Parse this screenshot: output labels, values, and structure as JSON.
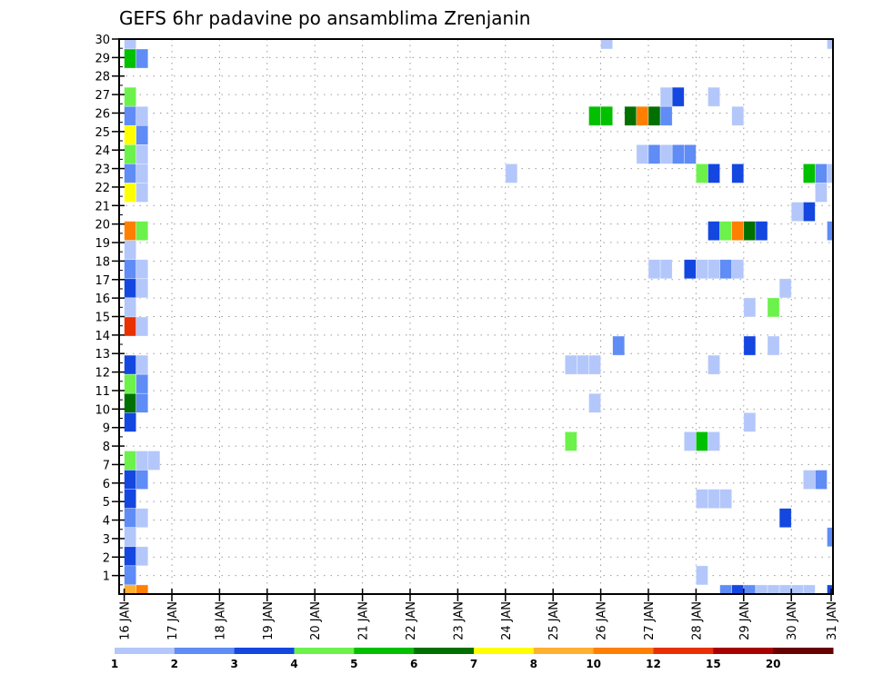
{
  "chart_data": {
    "type": "heatmap",
    "title": "GEFS 6hr padavine po ansamblima Zrenjanin",
    "xlabel": "",
    "ylabel": "",
    "x_tick_labels": [
      "16 JAN",
      "17 JAN",
      "18 JAN",
      "19 JAN",
      "20 JAN",
      "21 JAN",
      "22 JAN",
      "23 JAN",
      "24 JAN",
      "25 JAN",
      "26 JAN",
      "27 JAN",
      "28 JAN",
      "29 JAN",
      "30 JAN",
      "31 JAN"
    ],
    "x_unit": "6-hour step index from 16 JAN",
    "steps_per_day": 4,
    "y_tick_labels": [
      "1",
      "2",
      "3",
      "4",
      "5",
      "6",
      "7",
      "8",
      "9",
      "10",
      "11",
      "12",
      "13",
      "14",
      "15",
      "16",
      "17",
      "18",
      "19",
      "20",
      "21",
      "22",
      "23",
      "24",
      "25",
      "26",
      "27",
      "28",
      "29",
      "30"
    ],
    "ylim": [
      0,
      30
    ],
    "grid": true,
    "colorbar": {
      "placement": "bottom",
      "levels": [
        "1",
        "2",
        "3",
        "4",
        "5",
        "6",
        "7",
        "8",
        "10",
        "12",
        "15",
        "20"
      ],
      "bounds": [
        1,
        2,
        3,
        4,
        5,
        6,
        7,
        8,
        10,
        12,
        15,
        20,
        30
      ],
      "colors": [
        "#b4c7fb",
        "#5f8cf5",
        "#1446e0",
        "#6cf24a",
        "#00c000",
        "#007000",
        "#ffff00",
        "#ffb030",
        "#ff7f00",
        "#e83000",
        "#a80000",
        "#680000"
      ]
    },
    "cells_format": [
      "member",
      "step",
      "value_mm"
    ],
    "cells": [
      [
        30,
        0,
        1.5
      ],
      [
        30,
        40,
        1.5
      ],
      [
        30,
        59,
        1.5
      ],
      [
        29,
        0,
        5.5
      ],
      [
        29,
        1,
        2.5
      ],
      [
        27,
        0,
        4.5
      ],
      [
        27,
        45,
        1.5
      ],
      [
        27,
        46,
        3.5
      ],
      [
        27,
        49,
        1.5
      ],
      [
        26,
        0,
        2.5
      ],
      [
        26,
        1,
        1.5
      ],
      [
        26,
        39,
        5.5
      ],
      [
        26,
        40,
        5.5
      ],
      [
        26,
        42,
        6.5
      ],
      [
        26,
        43,
        11
      ],
      [
        26,
        44,
        6.5
      ],
      [
        26,
        45,
        2.5
      ],
      [
        26,
        51,
        1.5
      ],
      [
        25,
        0,
        7.5
      ],
      [
        25,
        1,
        2.5
      ],
      [
        24,
        0,
        4.5
      ],
      [
        24,
        1,
        1.5
      ],
      [
        24,
        43,
        1.5
      ],
      [
        24,
        44,
        2.5
      ],
      [
        24,
        45,
        1.5
      ],
      [
        24,
        46,
        2.5
      ],
      [
        24,
        47,
        2.5
      ],
      [
        23,
        0,
        2.5
      ],
      [
        23,
        1,
        1.5
      ],
      [
        23,
        32,
        1.5
      ],
      [
        23,
        48,
        4.5
      ],
      [
        23,
        49,
        3.5
      ],
      [
        23,
        51,
        3.5
      ],
      [
        23,
        57,
        5.5
      ],
      [
        23,
        58,
        2.5
      ],
      [
        23,
        59,
        1.5
      ],
      [
        22,
        0,
        7.5
      ],
      [
        22,
        1,
        1.5
      ],
      [
        22,
        58,
        1.5
      ],
      [
        21,
        56,
        1.5
      ],
      [
        21,
        57,
        3.5
      ],
      [
        20,
        0,
        11
      ],
      [
        20,
        1,
        4.5
      ],
      [
        20,
        49,
        3.5
      ],
      [
        20,
        50,
        4.5
      ],
      [
        20,
        51,
        11
      ],
      [
        20,
        52,
        6.5
      ],
      [
        20,
        53,
        3.5
      ],
      [
        20,
        59,
        2.5
      ],
      [
        19,
        0,
        1.5
      ],
      [
        18,
        0,
        2.5
      ],
      [
        18,
        1,
        1.5
      ],
      [
        18,
        44,
        1.5
      ],
      [
        18,
        45,
        1.5
      ],
      [
        18,
        47,
        3.5
      ],
      [
        18,
        48,
        1.5
      ],
      [
        18,
        49,
        1.5
      ],
      [
        18,
        50,
        2.5
      ],
      [
        18,
        51,
        1.5
      ],
      [
        17,
        0,
        3.5
      ],
      [
        17,
        1,
        1.5
      ],
      [
        17,
        55,
        1.5
      ],
      [
        16,
        0,
        1.5
      ],
      [
        16,
        52,
        1.5
      ],
      [
        16,
        54,
        4.5
      ],
      [
        15,
        0,
        13
      ],
      [
        15,
        1,
        1.5
      ],
      [
        14,
        41,
        2.5
      ],
      [
        14,
        52,
        3.5
      ],
      [
        14,
        54,
        1.5
      ],
      [
        13,
        0,
        3.5
      ],
      [
        13,
        1,
        1.5
      ],
      [
        13,
        37,
        1.5
      ],
      [
        13,
        38,
        1.5
      ],
      [
        13,
        39,
        1.5
      ],
      [
        13,
        49,
        1.5
      ],
      [
        12,
        0,
        4.5
      ],
      [
        12,
        1,
        2.5
      ],
      [
        11,
        0,
        6.5
      ],
      [
        11,
        1,
        2.5
      ],
      [
        11,
        39,
        1.5
      ],
      [
        10,
        0,
        3.5
      ],
      [
        10,
        52,
        1.5
      ],
      [
        9,
        37,
        4.5
      ],
      [
        9,
        47,
        1.5
      ],
      [
        9,
        48,
        5.5
      ],
      [
        9,
        49,
        1.5
      ],
      [
        8,
        0,
        4.5
      ],
      [
        8,
        1,
        1.5
      ],
      [
        8,
        2,
        1.5
      ],
      [
        7,
        0,
        3.5
      ],
      [
        7,
        1,
        2.5
      ],
      [
        7,
        57,
        1.5
      ],
      [
        7,
        58,
        2.5
      ],
      [
        6,
        0,
        3.5
      ],
      [
        6,
        48,
        1.5
      ],
      [
        6,
        49,
        1.5
      ],
      [
        6,
        50,
        1.5
      ],
      [
        5,
        0,
        2.5
      ],
      [
        5,
        1,
        1.5
      ],
      [
        5,
        55,
        3.5
      ],
      [
        4,
        0,
        1.5
      ],
      [
        4,
        59,
        2.5
      ],
      [
        3,
        0,
        3.5
      ],
      [
        3,
        1,
        1.5
      ],
      [
        2,
        0,
        2.5
      ],
      [
        2,
        48,
        1.5
      ],
      [
        1,
        0,
        9
      ],
      [
        1,
        1,
        11
      ],
      [
        1,
        50,
        2.5
      ],
      [
        1,
        51,
        3.5
      ],
      [
        1,
        52,
        2.5
      ],
      [
        1,
        53,
        1.5
      ],
      [
        1,
        54,
        1.5
      ],
      [
        1,
        55,
        1.5
      ],
      [
        1,
        56,
        1.5
      ],
      [
        1,
        57,
        1.5
      ],
      [
        1,
        59,
        3.5
      ]
    ]
  }
}
